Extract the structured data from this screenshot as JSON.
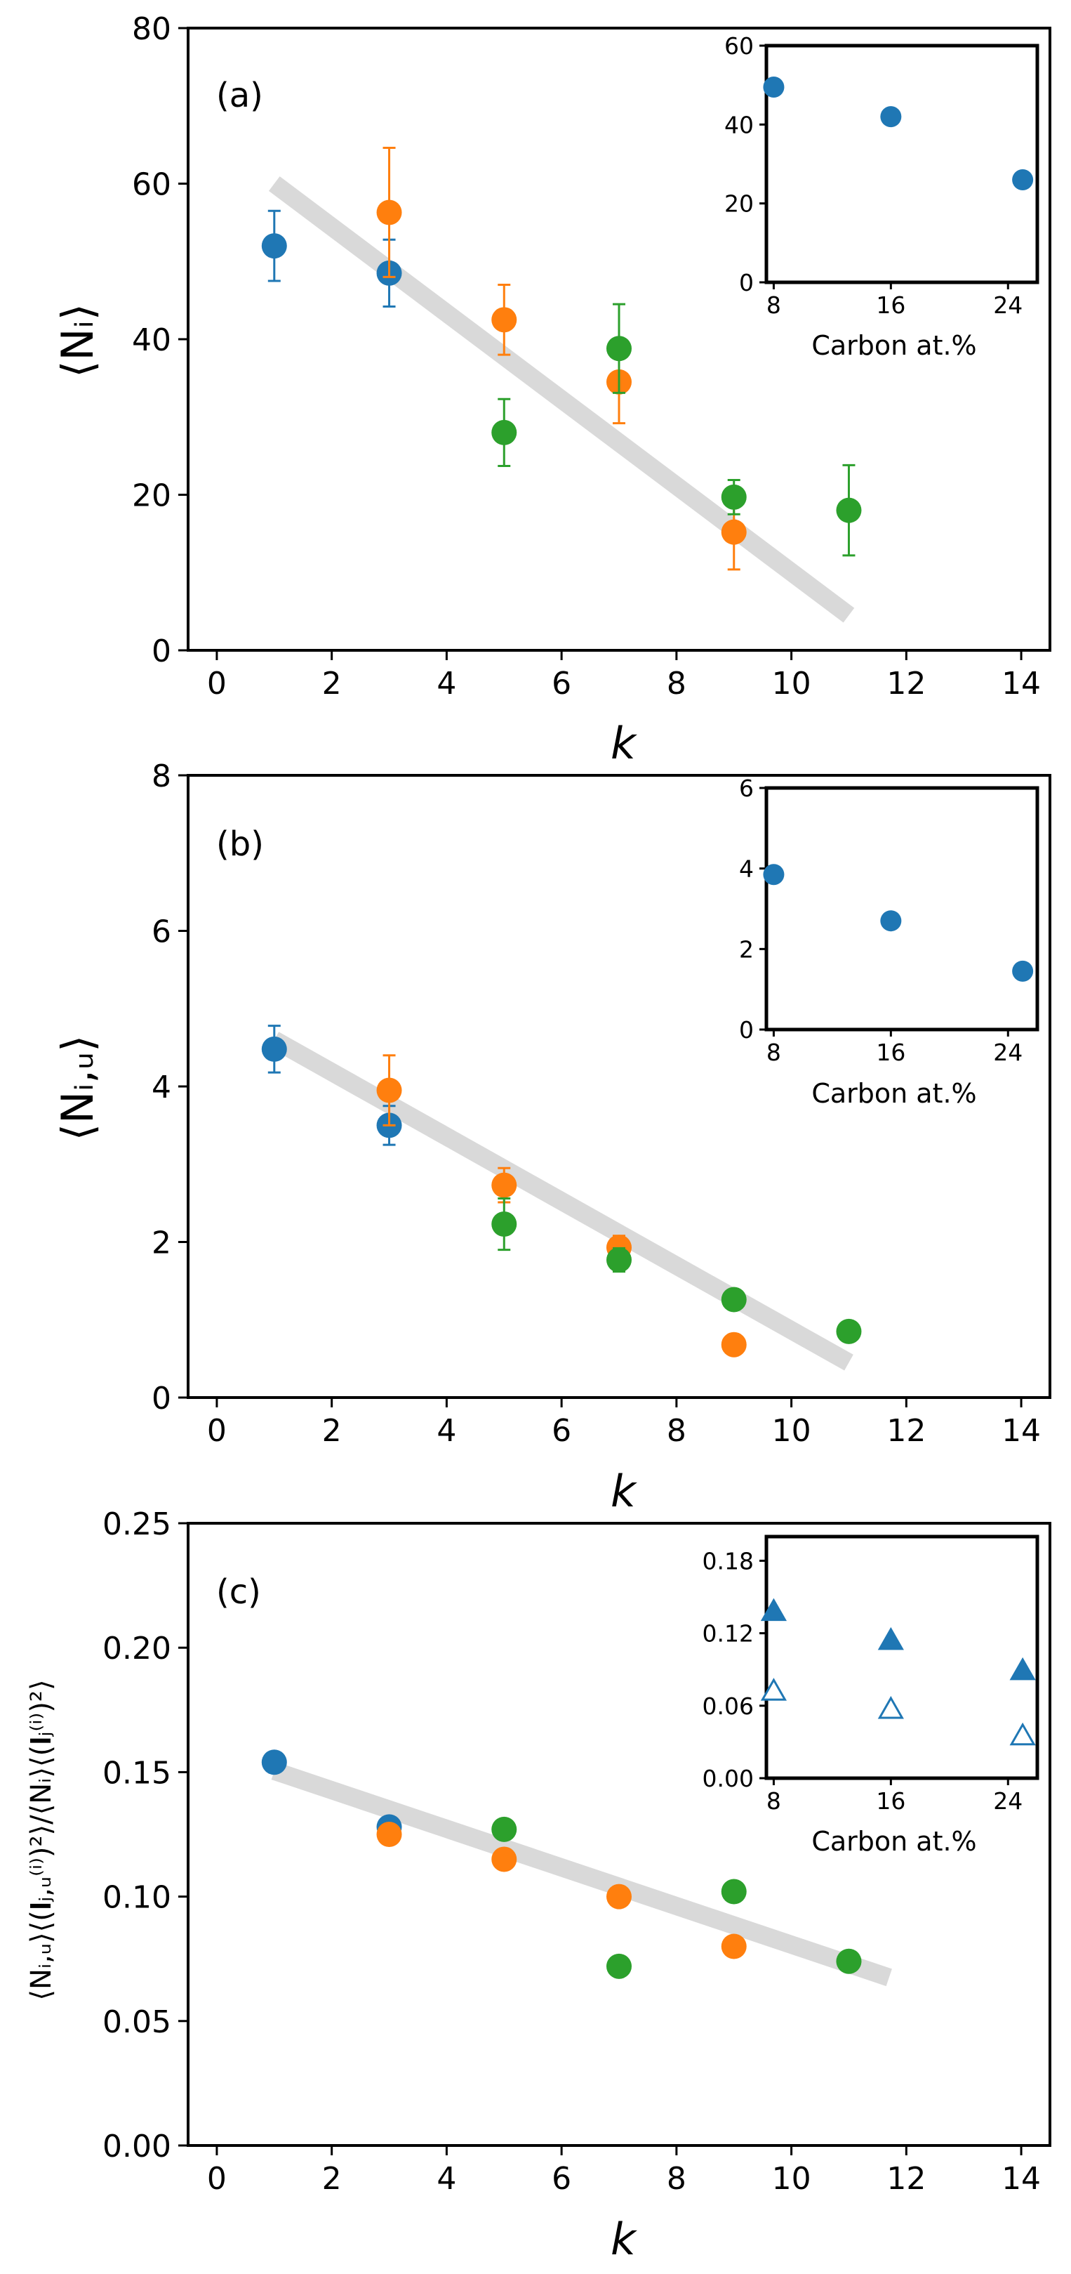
{
  "colors": {
    "blue": "#1f77b4",
    "orange": "#ff7f0e",
    "green": "#2ca02c",
    "trend": "#d9d9d9"
  },
  "chart_data": [
    {
      "id": "a",
      "type": "scatter",
      "panel_label": "(a)",
      "xlabel": "k",
      "ylabel": "⟨Nᵢ⟩",
      "xlim": [
        -0.5,
        14.5
      ],
      "ylim": [
        0,
        80
      ],
      "xticks": [
        0,
        2,
        4,
        6,
        8,
        10,
        12,
        14
      ],
      "yticks": [
        0,
        20,
        40,
        60,
        80
      ],
      "trend": {
        "x": [
          1,
          11
        ],
        "y": [
          60,
          4.5
        ]
      },
      "series": [
        {
          "name": "blue",
          "color": "#1f77b4",
          "marker": "circle",
          "points": [
            {
              "x": 1,
              "y": 52,
              "err": 4.5
            },
            {
              "x": 3,
              "y": 48.5,
              "err": 4.3
            }
          ]
        },
        {
          "name": "orange",
          "color": "#ff7f0e",
          "marker": "circle",
          "points": [
            {
              "x": 3,
              "y": 56.3,
              "err": 8.3
            },
            {
              "x": 5,
              "y": 42.5,
              "err": 4.5
            },
            {
              "x": 7,
              "y": 34.5,
              "err": 5.3
            },
            {
              "x": 9,
              "y": 15.2,
              "err": 4.8
            }
          ]
        },
        {
          "name": "green",
          "color": "#2ca02c",
          "marker": "circle",
          "points": [
            {
              "x": 5,
              "y": 28,
              "err": 4.3
            },
            {
              "x": 7,
              "y": 38.8,
              "err": 5.7
            },
            {
              "x": 9,
              "y": 19.7,
              "err": 2.2
            },
            {
              "x": 11,
              "y": 18,
              "err": 5.8
            }
          ]
        }
      ],
      "inset": {
        "xlabel": "Carbon at.%",
        "xlim": [
          7.5,
          26
        ],
        "ylim": [
          0,
          60
        ],
        "xticks": [
          8,
          16,
          24
        ],
        "yticks": [
          0,
          20,
          40,
          60
        ],
        "series": [
          {
            "color": "#1f77b4",
            "marker": "circle",
            "filled": true,
            "points": [
              {
                "x": 8,
                "y": 49.5
              },
              {
                "x": 16,
                "y": 42
              },
              {
                "x": 25,
                "y": 26
              }
            ]
          }
        ]
      }
    },
    {
      "id": "b",
      "type": "scatter",
      "panel_label": "(b)",
      "xlabel": "k",
      "ylabel": "⟨Nᵢ,ᵤ⟩",
      "xlim": [
        -0.5,
        14.5
      ],
      "ylim": [
        0,
        8
      ],
      "xticks": [
        0,
        2,
        4,
        6,
        8,
        10,
        12,
        14
      ],
      "yticks": [
        0,
        2,
        4,
        6,
        8
      ],
      "trend": {
        "x": [
          1,
          11
        ],
        "y": [
          4.6,
          0.45
        ]
      },
      "series": [
        {
          "name": "blue",
          "color": "#1f77b4",
          "marker": "circle",
          "points": [
            {
              "x": 1,
              "y": 4.48,
              "err": 0.3
            },
            {
              "x": 3,
              "y": 3.5,
              "err": 0.25
            }
          ]
        },
        {
          "name": "orange",
          "color": "#ff7f0e",
          "marker": "circle",
          "points": [
            {
              "x": 3,
              "y": 3.95,
              "err": 0.45
            },
            {
              "x": 5,
              "y": 2.73,
              "err": 0.22
            },
            {
              "x": 7,
              "y": 1.93,
              "err": 0.15
            },
            {
              "x": 9,
              "y": 0.68,
              "err": 0.1
            }
          ]
        },
        {
          "name": "green",
          "color": "#2ca02c",
          "marker": "circle",
          "points": [
            {
              "x": 5,
              "y": 2.23,
              "err": 0.33
            },
            {
              "x": 7,
              "y": 1.77,
              "err": 0.15
            },
            {
              "x": 9,
              "y": 1.26,
              "err": 0.07
            },
            {
              "x": 11,
              "y": 0.85,
              "err": 0.12
            }
          ]
        }
      ],
      "inset": {
        "xlabel": "Carbon at.%",
        "xlim": [
          7.5,
          26
        ],
        "ylim": [
          0,
          6
        ],
        "xticks": [
          8,
          16,
          24
        ],
        "yticks": [
          0,
          2,
          4,
          6
        ],
        "series": [
          {
            "color": "#1f77b4",
            "marker": "circle",
            "filled": true,
            "points": [
              {
                "x": 8,
                "y": 3.85
              },
              {
                "x": 16,
                "y": 2.7
              },
              {
                "x": 25,
                "y": 1.45
              }
            ]
          }
        ]
      }
    },
    {
      "id": "c",
      "type": "scatter",
      "panel_label": "(c)",
      "xlabel": "k",
      "ylabel": "⟨Nᵢ,ᵤ⟩⟨(𝐈ⱼ,ᵤ⁽ⁱ⁾)²⟩/⟨Nᵢ⟩⟨(𝐈ⱼ⁽ⁱ⁾)²⟩",
      "xlim": [
        -0.5,
        14.5
      ],
      "ylim": [
        0,
        0.25
      ],
      "xticks": [
        0,
        2,
        4,
        6,
        8,
        10,
        12,
        14
      ],
      "yticks": [
        0.0,
        0.05,
        0.1,
        0.15,
        0.2,
        0.25
      ],
      "ytick_labels": [
        "0.00",
        "0.05",
        "0.10",
        "0.15",
        "0.20",
        "0.25"
      ],
      "trend": {
        "x": [
          1,
          11.7
        ],
        "y": [
          0.1505,
          0.0675
        ]
      },
      "series": [
        {
          "name": "blue",
          "color": "#1f77b4",
          "marker": "circle",
          "points": [
            {
              "x": 1,
              "y": 0.154
            },
            {
              "x": 3,
              "y": 0.128
            }
          ]
        },
        {
          "name": "orange",
          "color": "#ff7f0e",
          "marker": "circle",
          "points": [
            {
              "x": 3,
              "y": 0.125
            },
            {
              "x": 5,
              "y": 0.115
            },
            {
              "x": 7,
              "y": 0.1
            },
            {
              "x": 9,
              "y": 0.08
            }
          ]
        },
        {
          "name": "green",
          "color": "#2ca02c",
          "marker": "circle",
          "points": [
            {
              "x": 5,
              "y": 0.127
            },
            {
              "x": 7,
              "y": 0.072
            },
            {
              "x": 9,
              "y": 0.102
            },
            {
              "x": 11,
              "y": 0.074
            }
          ]
        }
      ],
      "inset": {
        "xlabel": "Carbon at.%",
        "xlim": [
          7.5,
          26
        ],
        "ylim": [
          0,
          0.2
        ],
        "xticks": [
          8,
          16,
          24
        ],
        "yticks": [
          0.0,
          0.06,
          0.12,
          0.18
        ],
        "ytick_labels": [
          "0.00",
          "0.06",
          "0.12",
          "0.18"
        ],
        "series": [
          {
            "color": "#1f77b4",
            "marker": "triangle",
            "filled": true,
            "points": [
              {
                "x": 8,
                "y": 0.138
              },
              {
                "x": 16,
                "y": 0.114
              },
              {
                "x": 25,
                "y": 0.089
              }
            ]
          },
          {
            "color": "#1f77b4",
            "marker": "triangle",
            "filled": false,
            "points": [
              {
                "x": 8,
                "y": 0.072
              },
              {
                "x": 16,
                "y": 0.057
              },
              {
                "x": 25,
                "y": 0.035
              }
            ]
          }
        ]
      }
    }
  ]
}
